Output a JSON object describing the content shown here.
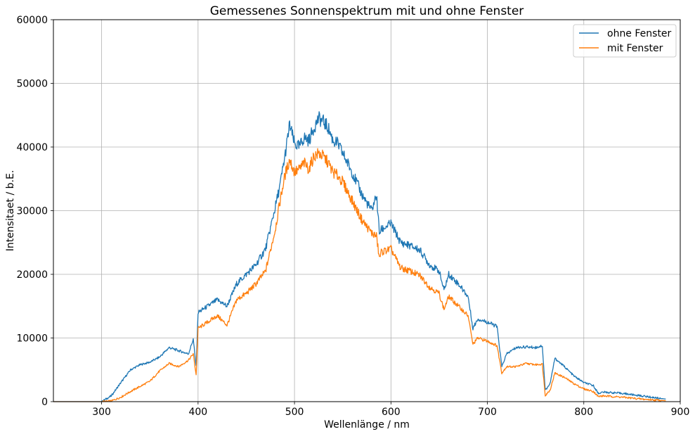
{
  "chart_data": {
    "type": "line",
    "title": "Gemessenes Sonnenspektrum mit und ohne Fenster",
    "xlabel": "Wellenlänge / nm",
    "ylabel": "Intensitaet / b.E.",
    "xlim": [
      250,
      900
    ],
    "ylim": [
      0,
      60000
    ],
    "xticks": [
      300,
      400,
      500,
      600,
      700,
      800,
      900
    ],
    "yticks": [
      0,
      10000,
      20000,
      30000,
      40000,
      50000,
      60000
    ],
    "grid": true,
    "legend_position": "top-right",
    "series": [
      {
        "name": "ohne Fenster",
        "color": "#1f77b4",
        "x": [
          250,
          300,
          310,
          320,
          330,
          340,
          350,
          360,
          370,
          380,
          390,
          395,
          398,
          400,
          410,
          420,
          430,
          440,
          450,
          460,
          470,
          480,
          485,
          490,
          495,
          500,
          505,
          510,
          515,
          520,
          525,
          530,
          535,
          540,
          545,
          550,
          560,
          570,
          580,
          585,
          588,
          590,
          600,
          610,
          620,
          630,
          640,
          650,
          655,
          660,
          670,
          680,
          685,
          690,
          700,
          710,
          715,
          720,
          730,
          740,
          750,
          757,
          760,
          765,
          770,
          780,
          790,
          800,
          810,
          815,
          820,
          840,
          860,
          885
        ],
        "y": [
          0,
          0,
          900,
          3000,
          5000,
          5800,
          6200,
          7000,
          8500,
          8000,
          7500,
          9800,
          5500,
          14000,
          15000,
          16000,
          15000,
          18500,
          20000,
          21500,
          24000,
          30500,
          34000,
          38500,
          43500,
          40500,
          40000,
          41500,
          41000,
          43000,
          44500,
          44000,
          43000,
          41000,
          40500,
          39000,
          36000,
          32500,
          30000,
          32500,
          26500,
          27000,
          28000,
          25000,
          24500,
          23800,
          21500,
          20500,
          17500,
          20000,
          18500,
          16500,
          11500,
          13000,
          12500,
          11800,
          5500,
          7500,
          8500,
          8600,
          8500,
          8800,
          1800,
          2800,
          6800,
          5500,
          4000,
          3000,
          2500,
          1300,
          1500,
          1300,
          900,
          400
        ]
      },
      {
        "name": "mit Fenster",
        "color": "#ff7f0e",
        "x": [
          250,
          300,
          310,
          320,
          330,
          340,
          350,
          360,
          370,
          380,
          390,
          395,
          398,
          400,
          410,
          420,
          430,
          440,
          450,
          460,
          470,
          480,
          485,
          490,
          495,
          500,
          505,
          510,
          515,
          520,
          525,
          530,
          535,
          540,
          545,
          550,
          560,
          570,
          580,
          585,
          588,
          590,
          600,
          610,
          620,
          630,
          640,
          650,
          655,
          660,
          670,
          680,
          685,
          690,
          700,
          710,
          715,
          720,
          730,
          740,
          750,
          757,
          760,
          765,
          770,
          780,
          790,
          800,
          810,
          815,
          820,
          840,
          860,
          885
        ],
        "y": [
          0,
          0,
          100,
          700,
          1600,
          2400,
          3200,
          4800,
          6000,
          5500,
          6500,
          7500,
          4200,
          11500,
          12500,
          13500,
          12000,
          16000,
          17000,
          18500,
          20500,
          27000,
          31500,
          35500,
          38000,
          36000,
          36500,
          37500,
          36500,
          38500,
          39000,
          38500,
          37500,
          36000,
          35500,
          34500,
          31500,
          28500,
          26500,
          26000,
          22500,
          23500,
          24000,
          21000,
          20500,
          19800,
          18000,
          17000,
          14500,
          16500,
          15000,
          13500,
          9000,
          10000,
          9500,
          8800,
          4500,
          5500,
          5500,
          6000,
          5800,
          5900,
          1000,
          1800,
          4500,
          3800,
          2800,
          2000,
          1600,
          800,
          900,
          700,
          400,
          150
        ]
      }
    ]
  }
}
